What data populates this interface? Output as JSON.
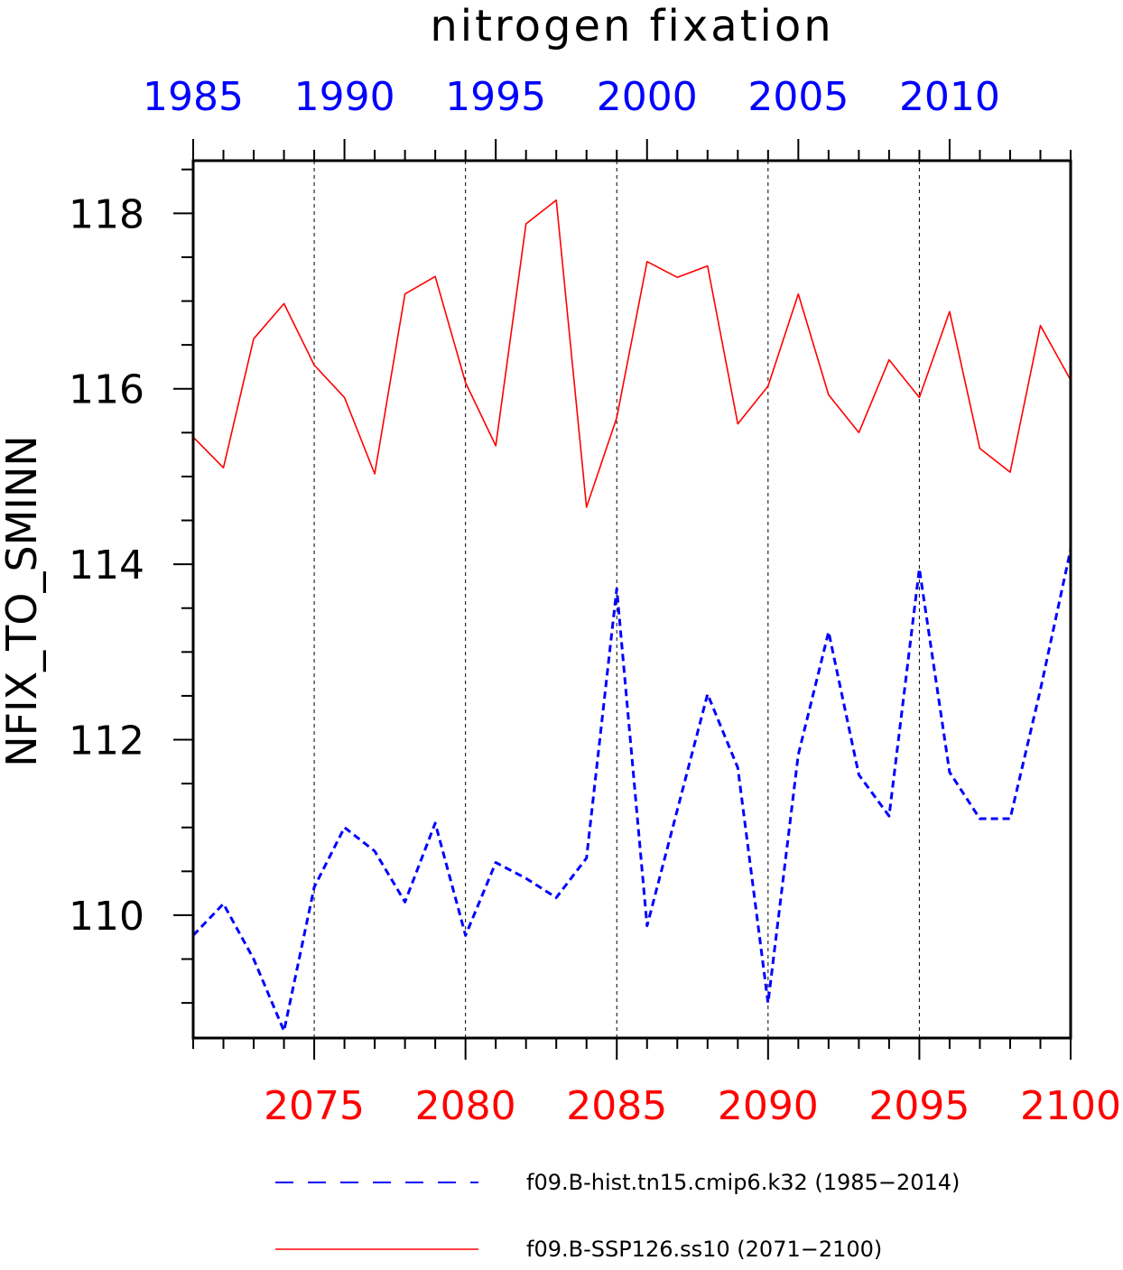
{
  "chart_data": {
    "type": "line",
    "title": "nitrogen fixation",
    "ylabel": "NFIX_TO_SMINN",
    "ylim": [
      108.6,
      118.6
    ],
    "yticks": [
      110,
      112,
      114,
      116,
      118
    ],
    "bottom_axis": {
      "range": [
        2071,
        2100
      ],
      "ticks": [
        2075,
        2080,
        2085,
        2090,
        2095,
        2100
      ],
      "color": "#ff0000"
    },
    "top_axis": {
      "range": [
        1985,
        2014
      ],
      "ticks": [
        1985,
        1990,
        1995,
        2000,
        2005,
        2010
      ],
      "color": "#0000ff"
    },
    "grid": "vertical dashed lines at labeled ticks",
    "legend_position": "bottom",
    "series": [
      {
        "name": "f09.B-hist.tn15.cmip6.k32 (1985−2014)",
        "axis": "top",
        "style": "dashed",
        "color": "#0000ff",
        "x": [
          1985,
          1986,
          1987,
          1988,
          1989,
          1990,
          1991,
          1992,
          1993,
          1994,
          1995,
          1996,
          1997,
          1998,
          1999,
          2000,
          2001,
          2002,
          2003,
          2004,
          2005,
          2006,
          2007,
          2008,
          2009,
          2010,
          2011,
          2012,
          2013,
          2014
        ],
        "values": [
          109.77,
          110.13,
          109.5,
          108.68,
          110.32,
          111.0,
          110.73,
          110.15,
          111.05,
          109.77,
          110.6,
          110.42,
          110.2,
          110.65,
          113.72,
          109.88,
          111.2,
          112.52,
          111.68,
          109.0,
          111.83,
          113.23,
          111.6,
          111.13,
          113.95,
          111.63,
          111.1,
          111.1,
          112.57,
          114.17
        ]
      },
      {
        "name": "f09.B-SSP126.ss10 (2071−2100)",
        "axis": "bottom",
        "style": "solid",
        "color": "#ff0000",
        "x": [
          2071,
          2072,
          2073,
          2074,
          2075,
          2076,
          2077,
          2078,
          2079,
          2080,
          2081,
          2082,
          2083,
          2084,
          2085,
          2086,
          2087,
          2088,
          2089,
          2090,
          2091,
          2092,
          2093,
          2094,
          2095,
          2096,
          2097,
          2098,
          2099,
          2100
        ],
        "values": [
          115.45,
          115.1,
          116.57,
          116.97,
          116.27,
          115.9,
          115.03,
          117.08,
          117.28,
          116.07,
          115.35,
          117.88,
          118.15,
          114.65,
          115.67,
          117.45,
          117.27,
          117.4,
          115.6,
          116.03,
          117.08,
          115.93,
          115.5,
          116.33,
          115.9,
          116.88,
          115.32,
          115.05,
          116.72,
          116.1
        ]
      }
    ]
  }
}
